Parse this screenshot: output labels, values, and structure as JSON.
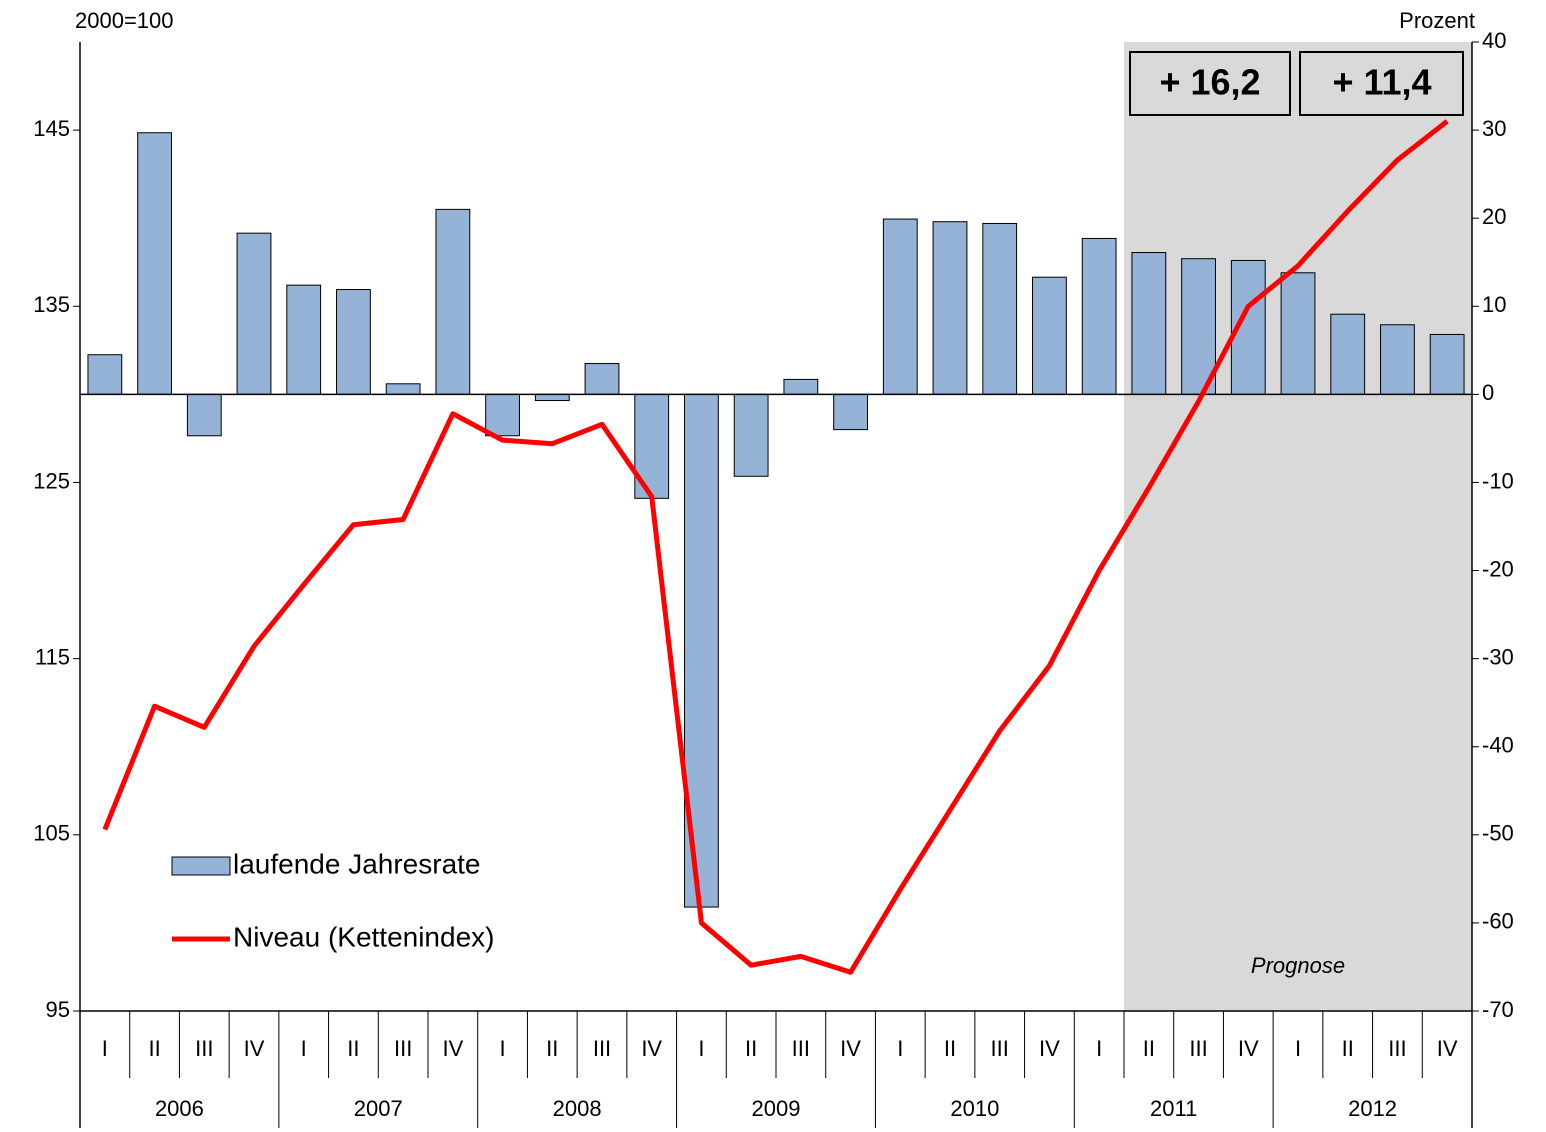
{
  "chart_data": {
    "type": "bar_line",
    "y_label": "2000=100",
    "y2_label": "Prozent",
    "categories": [
      "I",
      "II",
      "III",
      "IV",
      "I",
      "II",
      "III",
      "IV",
      "I",
      "II",
      "III",
      "IV",
      "I",
      "II",
      "III",
      "IV",
      "I",
      "II",
      "III",
      "IV",
      "I",
      "II",
      "III",
      "IV",
      "I",
      "II",
      "III",
      "IV"
    ],
    "groups": [
      "2006",
      "2007",
      "2008",
      "2009",
      "2010",
      "2011",
      "2012"
    ],
    "series": [
      {
        "name": "laufende Jahresrate",
        "type": "bar",
        "axis": "y2",
        "color": "#95b3d7",
        "values": [
          4.5,
          29.7,
          -4.7,
          18.3,
          12.4,
          11.9,
          1.2,
          21.0,
          -4.7,
          -0.7,
          3.5,
          -11.8,
          -58.2,
          -9.3,
          1.7,
          -4.0,
          19.9,
          19.6,
          19.4,
          13.3,
          17.7,
          16.1,
          15.4,
          15.2,
          13.8,
          9.1,
          7.9,
          6.8
        ]
      },
      {
        "name": "Niveau (Kettenindex)",
        "type": "line",
        "axis": "y",
        "color": "#ff0000",
        "values": [
          105.3,
          112.3,
          111.1,
          115.7,
          119.2,
          122.6,
          122.9,
          128.9,
          127.4,
          127.2,
          128.3,
          124.2,
          100.0,
          97.6,
          98.1,
          97.2,
          101.9,
          106.4,
          110.9,
          114.6,
          120.0,
          124.7,
          129.6,
          135.0,
          137.3,
          140.4,
          143.3,
          145.5
        ]
      }
    ],
    "ylim": [
      95,
      150
    ],
    "yticks": [
      95,
      105,
      115,
      125,
      135,
      145
    ],
    "y2lim": [
      -70,
      40
    ],
    "y2ticks": [
      -70,
      -60,
      -50,
      -40,
      -30,
      -20,
      -10,
      0,
      10,
      20,
      30,
      40
    ],
    "annotations": [
      "+ 16,2",
      "+ 11,4",
      "Prognose"
    ],
    "shade_color": "#d9d9d9"
  }
}
